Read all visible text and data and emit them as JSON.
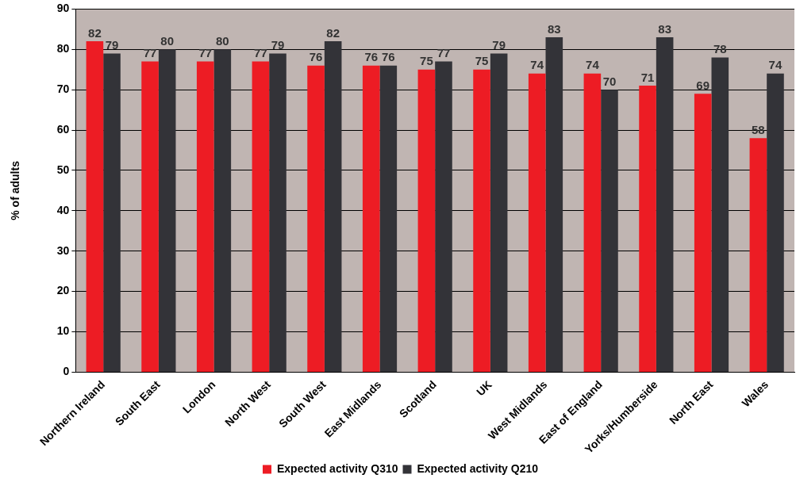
{
  "chart_data": {
    "type": "bar",
    "ylabel": "% of adults",
    "categories": [
      "Northern Ireland",
      "South East",
      "London",
      "North West",
      "South West",
      "East Midlands",
      "Scotland",
      "UK",
      "West Midlands",
      "East of England",
      "Yorks/Humberside",
      "North East",
      "Wales"
    ],
    "series": [
      {
        "name": "Expected activity Q310",
        "color": "#ed1c24",
        "values": [
          82,
          77,
          77,
          77,
          76,
          76,
          75,
          75,
          74,
          74,
          71,
          69,
          58
        ]
      },
      {
        "name": "Expected activity Q210",
        "color": "#333338",
        "values": [
          79,
          80,
          80,
          79,
          82,
          76,
          77,
          79,
          83,
          70,
          83,
          78,
          74
        ]
      }
    ],
    "ylim": [
      0,
      90
    ],
    "yticks": [
      0,
      10,
      20,
      30,
      40,
      50,
      60,
      70,
      80,
      90
    ],
    "grid": "y",
    "legend": "bottom",
    "data_labels": true
  }
}
